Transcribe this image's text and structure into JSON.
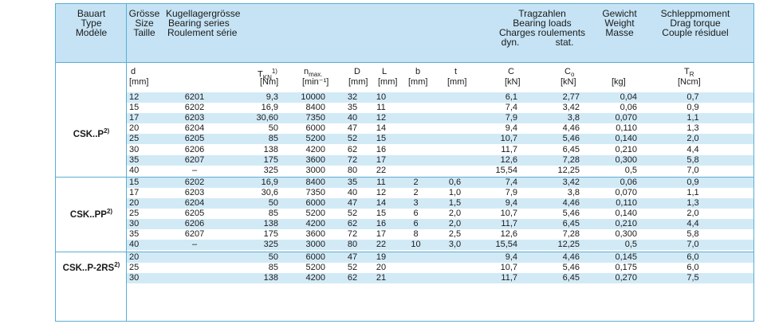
{
  "header": {
    "col1": [
      "Bauart",
      "Type",
      "Modèle"
    ],
    "col2": [
      "Grösse",
      "Size",
      "Taille"
    ],
    "col3": [
      "Kugellagergrösse",
      "Bearing series",
      "Roulement série"
    ],
    "loads": [
      "Tragzahlen",
      "Bearing loads",
      "Charges roulements"
    ],
    "loads_dyn": "dyn.",
    "loads_stat": "stat.",
    "weight": [
      "Gewicht",
      "Weight",
      "Masse"
    ],
    "drag": [
      "Schleppmoment",
      "Drag torque",
      "Couple résiduel"
    ]
  },
  "units_row": {
    "d": "d",
    "d_u": "[mm]",
    "tkn": "T",
    "tkn_sub": "KN",
    "tkn_sup": "1)",
    "tkn_u": "[Nm]",
    "nmax": "n",
    "nmax_sub": "max.",
    "nmax_u": "[min⁻¹]",
    "D": "D",
    "D_u": "[mm]",
    "L": "L",
    "L_u": "[mm]",
    "b": "b",
    "b_u": "[mm]",
    "t": "t",
    "t_u": "[mm]",
    "C": "C",
    "C_u": "[kN]",
    "Co": "C",
    "Co_sub": "o",
    "Co_u": "[kN]",
    "w_u": "[kg]",
    "TR": "T",
    "TR_sub": "R",
    "TR_u": "[Ncm]"
  },
  "groups": [
    {
      "label": "CSK..P",
      "sup": "2)",
      "rows": [
        [
          "12",
          "6201",
          "9,3",
          "10000",
          "32",
          "10",
          "",
          "",
          "6,1",
          "2,77",
          "0,04",
          "0,7"
        ],
        [
          "15",
          "6202",
          "16,9",
          "8400",
          "35",
          "11",
          "",
          "",
          "7,4",
          "3,42",
          "0,06",
          "0,9"
        ],
        [
          "17",
          "6203",
          "30,60",
          "7350",
          "40",
          "12",
          "",
          "",
          "7,9",
          "3,8",
          "0,070",
          "1,1"
        ],
        [
          "20",
          "6204",
          "50",
          "6000",
          "47",
          "14",
          "",
          "",
          "9,4",
          "4,46",
          "0,110",
          "1,3"
        ],
        [
          "25",
          "6205",
          "85",
          "5200",
          "52",
          "15",
          "",
          "",
          "10,7",
          "5,46",
          "0,140",
          "2,0"
        ],
        [
          "30",
          "6206",
          "138",
          "4200",
          "62",
          "16",
          "",
          "",
          "11,7",
          "6,45",
          "0,210",
          "4,4"
        ],
        [
          "35",
          "6207",
          "175",
          "3600",
          "72",
          "17",
          "",
          "",
          "12,6",
          "7,28",
          "0,300",
          "5,8"
        ],
        [
          "40",
          "–",
          "325",
          "3000",
          "80",
          "22",
          "",
          "",
          "15,54",
          "12,25",
          "0,5",
          "7,0"
        ]
      ]
    },
    {
      "label": "CSK..PP",
      "sup": "2)",
      "rows": [
        [
          "15",
          "6202",
          "16,9",
          "8400",
          "35",
          "11",
          "2",
          "0,6",
          "7,4",
          "3,42",
          "0,06",
          "0,9"
        ],
        [
          "17",
          "6203",
          "30,6",
          "7350",
          "40",
          "12",
          "2",
          "1,0",
          "7,9",
          "3,8",
          "0,070",
          "1,1"
        ],
        [
          "20",
          "6204",
          "50",
          "6000",
          "47",
          "14",
          "3",
          "1,5",
          "9,4",
          "4,46",
          "0,110",
          "1,3"
        ],
        [
          "25",
          "6205",
          "85",
          "5200",
          "52",
          "15",
          "6",
          "2,0",
          "10,7",
          "5,46",
          "0,140",
          "2,0"
        ],
        [
          "30",
          "6206",
          "138",
          "4200",
          "62",
          "16",
          "6",
          "2,0",
          "11,7",
          "6,45",
          "0,210",
          "4,4"
        ],
        [
          "35",
          "6207",
          "175",
          "3600",
          "72",
          "17",
          "8",
          "2,5",
          "12,6",
          "7,28",
          "0,300",
          "5,8"
        ],
        [
          "40",
          "–",
          "325",
          "3000",
          "80",
          "22",
          "10",
          "3,0",
          "15,54",
          "12,25",
          "0,5",
          "7,0"
        ]
      ]
    },
    {
      "label": "CSK..P-2RS",
      "sup": "2)",
      "rows": [
        [
          "20",
          "",
          "50",
          "6000",
          "47",
          "19",
          "",
          "",
          "9,4",
          "4,46",
          "0,145",
          "6,0"
        ],
        [
          "25",
          "",
          "85",
          "5200",
          "52",
          "20",
          "",
          "",
          "10,7",
          "5,46",
          "0,175",
          "6,0"
        ],
        [
          "30",
          "",
          "138",
          "4200",
          "62",
          "21",
          "",
          "",
          "11,7",
          "6,45",
          "0,270",
          "7,5"
        ]
      ]
    }
  ]
}
